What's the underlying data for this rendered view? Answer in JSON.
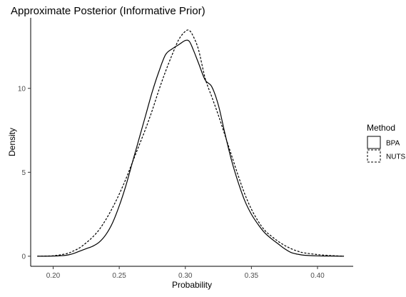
{
  "chart_data": {
    "type": "line",
    "title": "Approximate Posterior (Informative Prior)",
    "xlabel": "Probability",
    "ylabel": "Density",
    "xlim": [
      0.183,
      0.427
    ],
    "ylim": [
      -0.6,
      14.2
    ],
    "x_ticks": [
      0.2,
      0.25,
      0.3,
      0.35,
      0.4
    ],
    "x_tick_labels": [
      "0.20",
      "0.25",
      "0.30",
      "0.35",
      "0.40"
    ],
    "y_ticks": [
      0,
      5,
      10
    ],
    "y_tick_labels": [
      "0",
      "5",
      "10"
    ],
    "grid": false,
    "legend": {
      "title": "Method",
      "position": "right",
      "entries": [
        "BPA",
        "NUTS"
      ]
    },
    "series": [
      {
        "name": "BPA",
        "line_style": "solid",
        "color": "#000000",
        "points": [
          [
            0.188,
            0.0
          ],
          [
            0.2,
            0.01
          ],
          [
            0.21,
            0.06
          ],
          [
            0.215,
            0.15
          ],
          [
            0.22,
            0.3
          ],
          [
            0.225,
            0.45
          ],
          [
            0.23,
            0.6
          ],
          [
            0.235,
            0.85
          ],
          [
            0.24,
            1.3
          ],
          [
            0.245,
            2.0
          ],
          [
            0.25,
            3.0
          ],
          [
            0.255,
            4.2
          ],
          [
            0.26,
            5.6
          ],
          [
            0.265,
            7.0
          ],
          [
            0.27,
            8.4
          ],
          [
            0.275,
            9.8
          ],
          [
            0.28,
            11.0
          ],
          [
            0.285,
            12.0
          ],
          [
            0.29,
            12.35
          ],
          [
            0.295,
            12.6
          ],
          [
            0.3,
            12.85
          ],
          [
            0.303,
            12.8
          ],
          [
            0.306,
            12.3
          ],
          [
            0.31,
            11.5
          ],
          [
            0.315,
            10.5
          ],
          [
            0.32,
            10.1
          ],
          [
            0.325,
            9.0
          ],
          [
            0.33,
            7.3
          ],
          [
            0.335,
            5.7
          ],
          [
            0.34,
            4.4
          ],
          [
            0.345,
            3.3
          ],
          [
            0.35,
            2.5
          ],
          [
            0.355,
            1.9
          ],
          [
            0.36,
            1.4
          ],
          [
            0.365,
            1.05
          ],
          [
            0.37,
            0.75
          ],
          [
            0.375,
            0.45
          ],
          [
            0.38,
            0.22
          ],
          [
            0.385,
            0.12
          ],
          [
            0.39,
            0.06
          ],
          [
            0.4,
            0.02
          ],
          [
            0.41,
            0.01
          ],
          [
            0.42,
            0.0
          ]
        ]
      },
      {
        "name": "NUTS",
        "line_style": "dashed",
        "color": "#000000",
        "points": [
          [
            0.188,
            0.0
          ],
          [
            0.2,
            0.03
          ],
          [
            0.21,
            0.15
          ],
          [
            0.215,
            0.3
          ],
          [
            0.22,
            0.5
          ],
          [
            0.225,
            0.8
          ],
          [
            0.23,
            1.15
          ],
          [
            0.235,
            1.6
          ],
          [
            0.24,
            2.2
          ],
          [
            0.245,
            2.9
          ],
          [
            0.25,
            3.7
          ],
          [
            0.255,
            4.6
          ],
          [
            0.26,
            5.6
          ],
          [
            0.265,
            6.6
          ],
          [
            0.27,
            7.6
          ],
          [
            0.275,
            8.7
          ],
          [
            0.28,
            9.9
          ],
          [
            0.285,
            11.0
          ],
          [
            0.29,
            12.0
          ],
          [
            0.295,
            12.9
          ],
          [
            0.3,
            13.4
          ],
          [
            0.303,
            13.45
          ],
          [
            0.306,
            13.1
          ],
          [
            0.31,
            12.3
          ],
          [
            0.315,
            10.6
          ],
          [
            0.32,
            9.5
          ],
          [
            0.325,
            8.4
          ],
          [
            0.33,
            7.2
          ],
          [
            0.335,
            6.0
          ],
          [
            0.34,
            4.8
          ],
          [
            0.345,
            3.7
          ],
          [
            0.35,
            2.8
          ],
          [
            0.355,
            2.1
          ],
          [
            0.36,
            1.55
          ],
          [
            0.365,
            1.2
          ],
          [
            0.37,
            0.9
          ],
          [
            0.375,
            0.65
          ],
          [
            0.38,
            0.45
          ],
          [
            0.385,
            0.3
          ],
          [
            0.39,
            0.2
          ],
          [
            0.4,
            0.1
          ],
          [
            0.41,
            0.04
          ],
          [
            0.42,
            0.0
          ]
        ]
      }
    ]
  }
}
